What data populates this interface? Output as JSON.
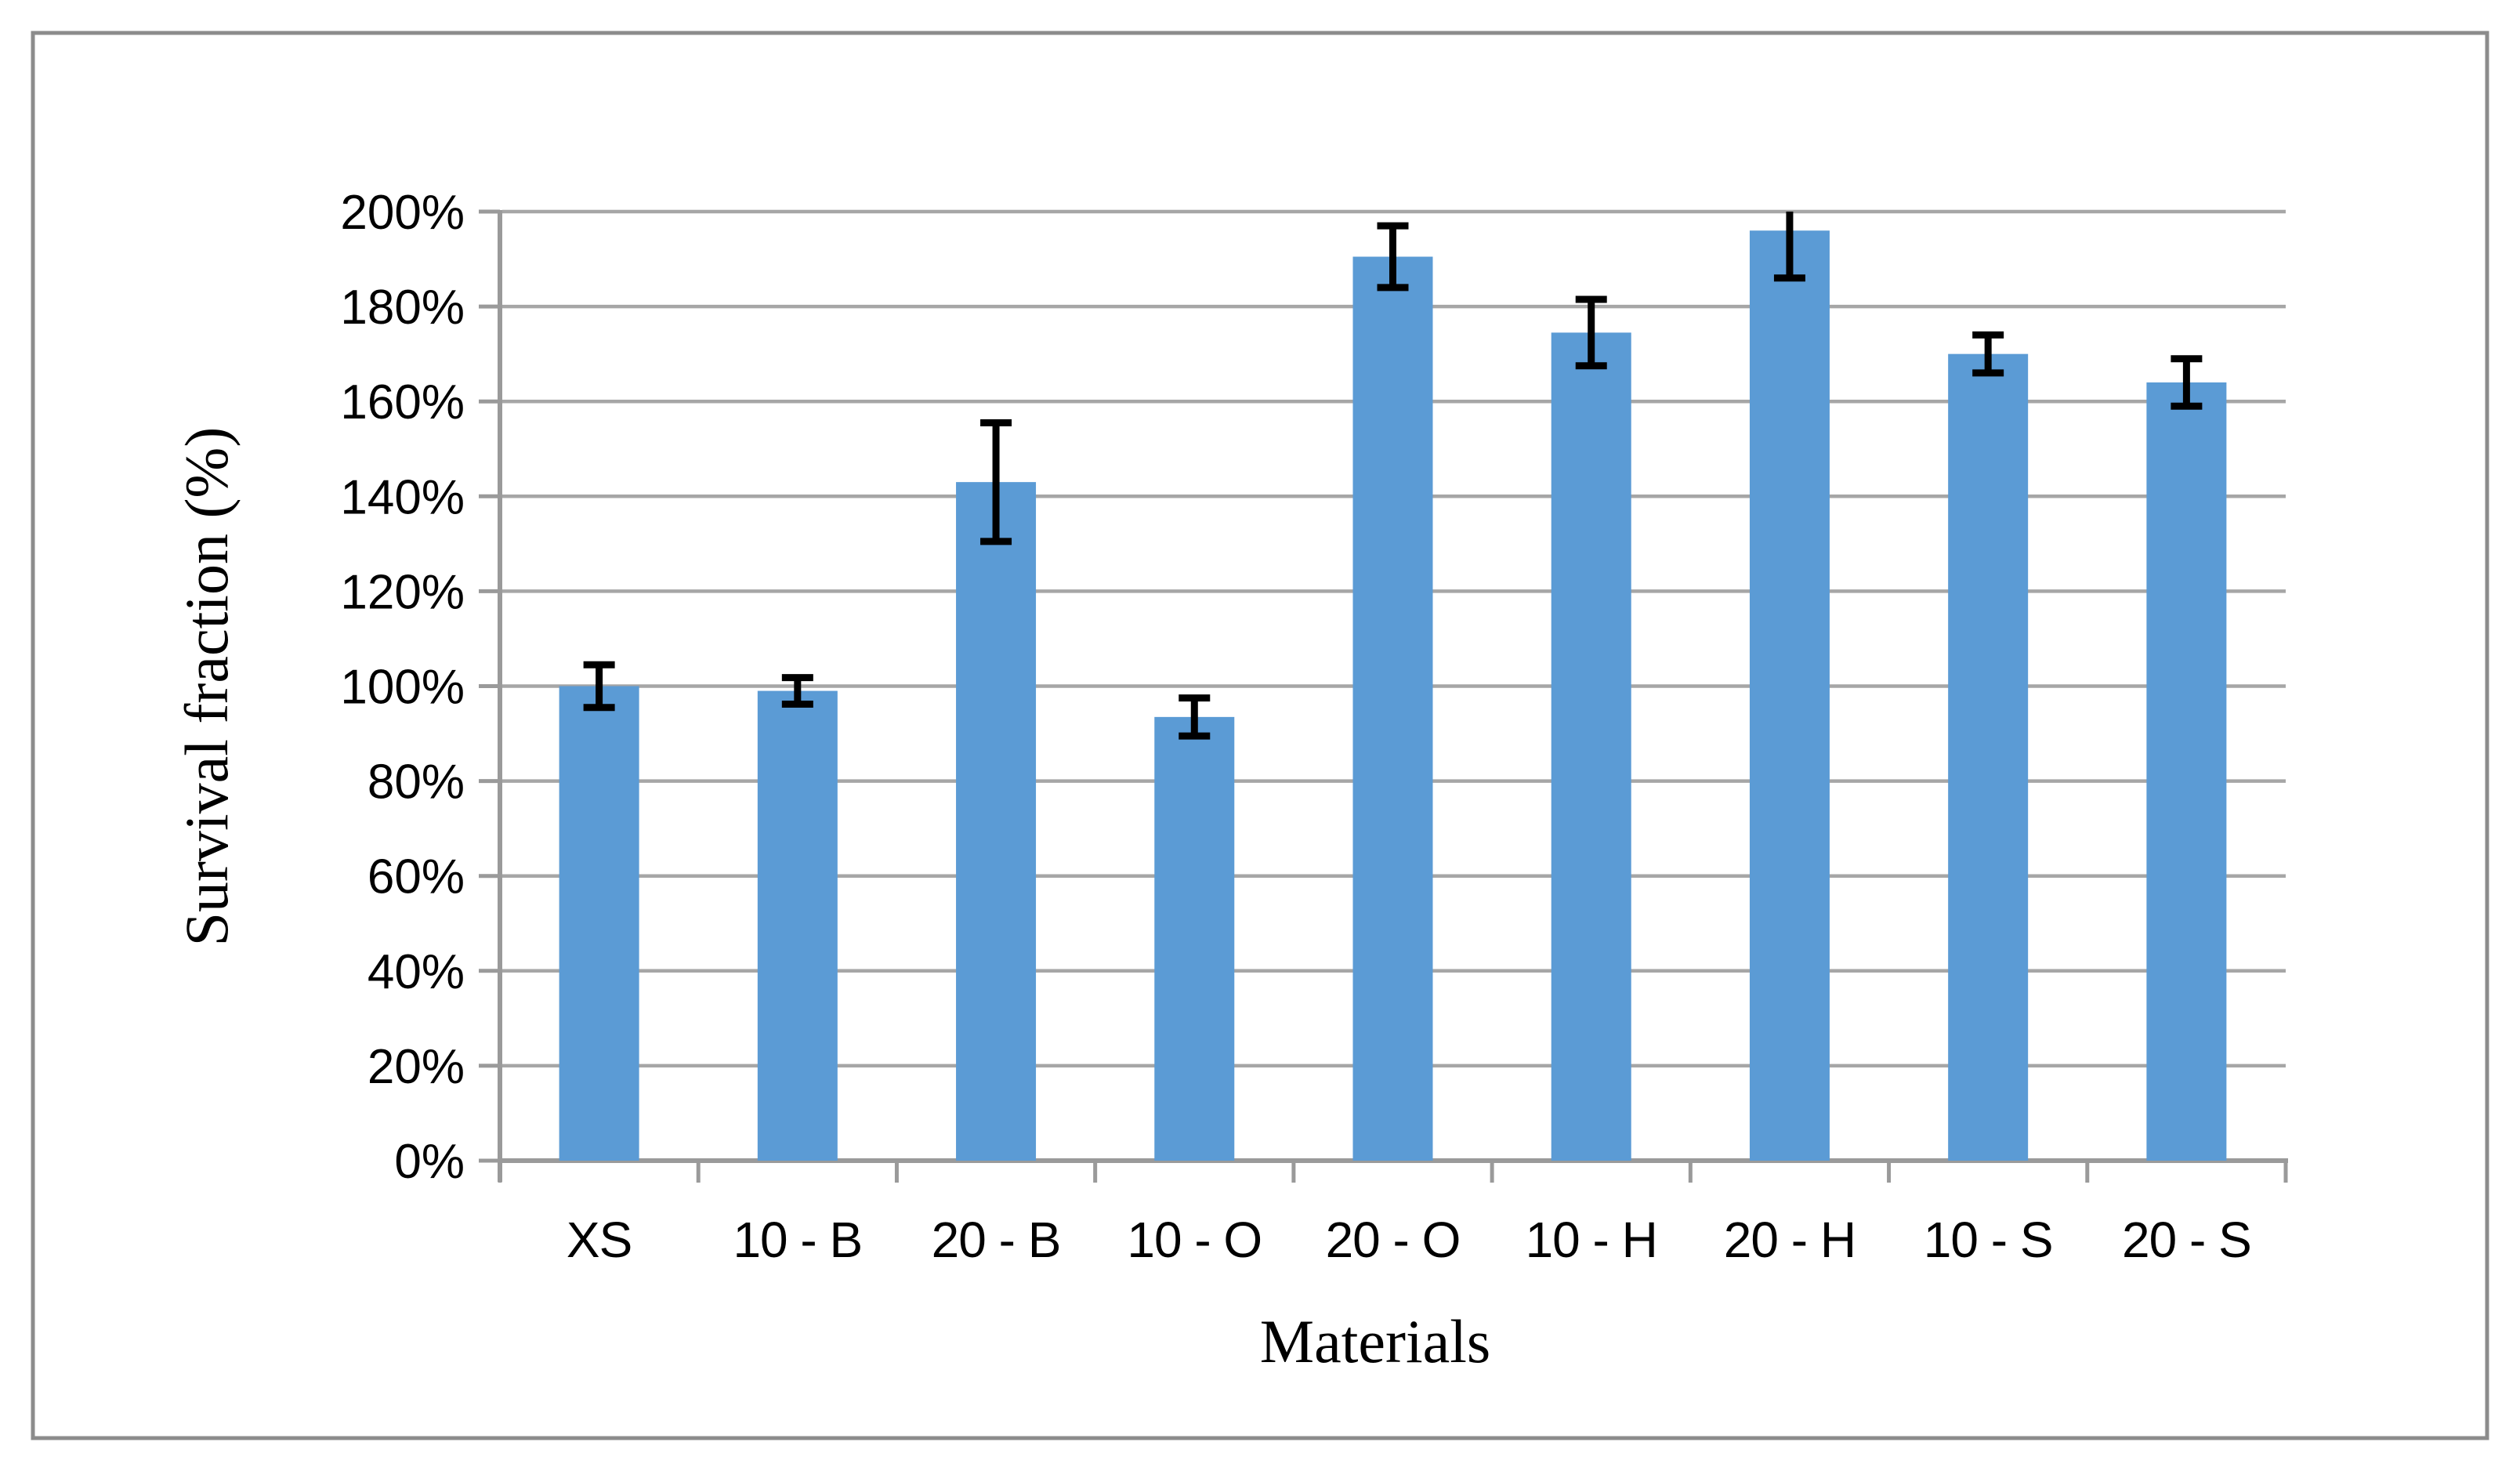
{
  "chart_data": {
    "type": "bar",
    "title": "",
    "categories": [
      "XS",
      "10 - B",
      "20 - B",
      "10 - O",
      "20 - O",
      "10 - H",
      "20 - H",
      "10 - S",
      "20 - S"
    ],
    "values": [
      100,
      99,
      143,
      93.5,
      190.5,
      174.5,
      196,
      170,
      164
    ],
    "error_bars": [
      4.5,
      2.8,
      12.5,
      4,
      6.5,
      7,
      10,
      4,
      5
    ],
    "xlabel": "Materials",
    "ylabel": "Survival fraction (%)",
    "ylim": [
      0,
      200
    ],
    "ytick_step": 20,
    "ytick_labels": [
      "0%",
      "20%",
      "40%",
      "60%",
      "80%",
      "100%",
      "120%",
      "140%",
      "160%",
      "180%",
      "200%"
    ],
    "grid": "horizontal",
    "legend": "none",
    "error_bar_clip_at_ymax": true,
    "colors": {
      "bar": "#5B9BD5",
      "error_bar": "#000000",
      "gridline": "#A6A6A6",
      "axis": "#9A9A9A",
      "chart_border": "#8C8C8C",
      "background": "#FFFFFF",
      "text": "#000000"
    }
  }
}
